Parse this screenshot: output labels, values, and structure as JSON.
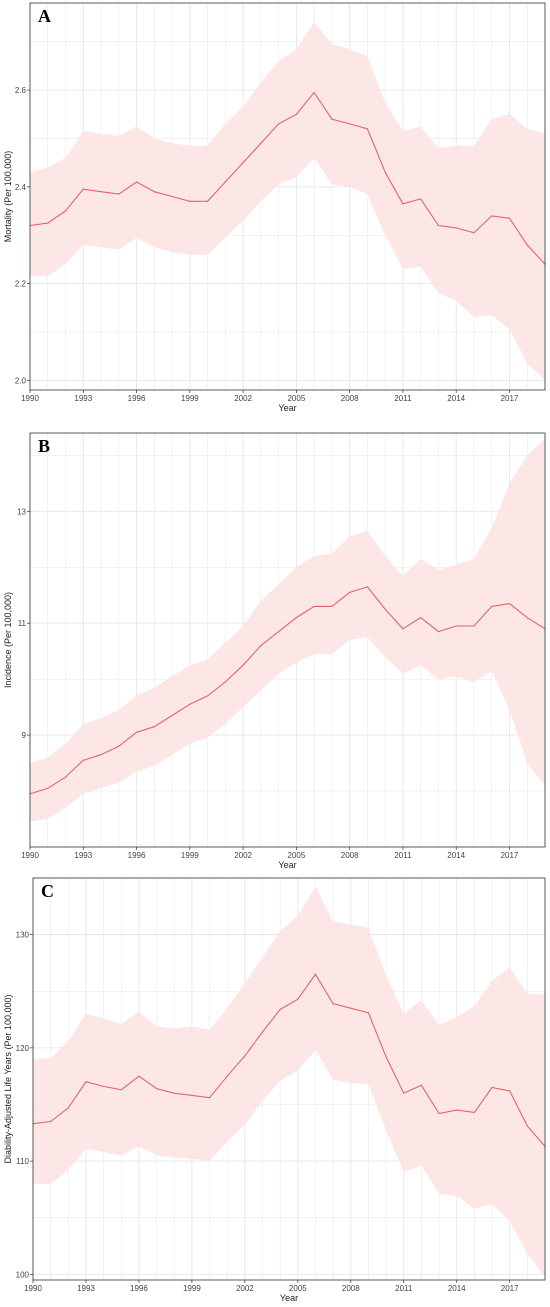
{
  "style": {
    "line_color": "#e06666",
    "band_color": "#fde2e2",
    "panel_bg": "#ffffff",
    "grid_color": "#e6e6e6",
    "frame_color": "#333333"
  },
  "chart_data": [
    {
      "type": "line",
      "panel": "A",
      "xlabel": "Year",
      "ylabel": "Mortality (Per 100,000)",
      "x": [
        1990,
        1991,
        1992,
        1993,
        1994,
        1995,
        1996,
        1997,
        1998,
        1999,
        2000,
        2001,
        2002,
        2003,
        2004,
        2005,
        2006,
        2007,
        2008,
        2009,
        2010,
        2011,
        2012,
        2013,
        2014,
        2015,
        2016,
        2017,
        2018,
        2019
      ],
      "series": [
        {
          "values": [
            2.32,
            2.325,
            2.35,
            2.395,
            2.39,
            2.385,
            2.41,
            2.39,
            2.38,
            2.37,
            2.37,
            2.41,
            2.45,
            2.49,
            2.53,
            2.55,
            2.595,
            2.54,
            2.53,
            2.52,
            2.43,
            2.365,
            2.375,
            2.32,
            2.315,
            2.305,
            2.34,
            2.335,
            2.28,
            2.24
          ],
          "lower": [
            2.215,
            2.215,
            2.24,
            2.28,
            2.275,
            2.27,
            2.295,
            2.275,
            2.265,
            2.26,
            2.26,
            2.295,
            2.33,
            2.37,
            2.405,
            2.42,
            2.46,
            2.405,
            2.4,
            2.385,
            2.3,
            2.23,
            2.235,
            2.18,
            2.165,
            2.13,
            2.135,
            2.105,
            2.035,
            2.0
          ],
          "upper": [
            2.43,
            2.44,
            2.46,
            2.515,
            2.51,
            2.505,
            2.525,
            2.5,
            2.49,
            2.485,
            2.485,
            2.53,
            2.565,
            2.615,
            2.66,
            2.685,
            2.74,
            2.695,
            2.685,
            2.67,
            2.575,
            2.515,
            2.525,
            2.48,
            2.485,
            2.485,
            2.54,
            2.55,
            2.52,
            2.51
          ]
        }
      ],
      "xlim": [
        1990,
        2019
      ],
      "ylim": [
        1.98,
        2.78
      ],
      "x_ticks": [
        1990,
        1993,
        1996,
        1999,
        2002,
        2005,
        2008,
        2011,
        2014,
        2017
      ],
      "y_ticks": [
        2.0,
        2.2,
        2.4,
        2.6
      ],
      "y_tick_labels": [
        "2.0",
        "2.2",
        "2.4",
        "2.6"
      ],
      "grid": true
    },
    {
      "type": "line",
      "panel": "B",
      "xlabel": "Year",
      "ylabel": "Incidence (Per 100,000)",
      "x": [
        1990,
        1991,
        1992,
        1993,
        1994,
        1995,
        1996,
        1997,
        1998,
        1999,
        2000,
        2001,
        2002,
        2003,
        2004,
        2005,
        2006,
        2007,
        2008,
        2009,
        2010,
        2011,
        2012,
        2013,
        2014,
        2015,
        2016,
        2017,
        2018,
        2019
      ],
      "series": [
        {
          "values": [
            7.95,
            8.05,
            8.25,
            8.55,
            8.65,
            8.8,
            9.05,
            9.15,
            9.35,
            9.55,
            9.7,
            9.95,
            10.25,
            10.6,
            10.85,
            11.1,
            11.3,
            11.3,
            11.55,
            11.65,
            11.25,
            10.9,
            11.1,
            10.85,
            10.95,
            10.95,
            11.3,
            11.35,
            11.1,
            10.9
          ],
          "lower": [
            7.45,
            7.5,
            7.7,
            7.95,
            8.05,
            8.15,
            8.35,
            8.45,
            8.65,
            8.85,
            8.95,
            9.2,
            9.5,
            9.8,
            10.1,
            10.3,
            10.45,
            10.45,
            10.7,
            10.75,
            10.4,
            10.1,
            10.25,
            10.0,
            10.05,
            9.95,
            10.15,
            9.45,
            8.5,
            8.1
          ],
          "upper": [
            8.5,
            8.6,
            8.85,
            9.2,
            9.3,
            9.45,
            9.7,
            9.85,
            10.05,
            10.25,
            10.35,
            10.65,
            10.95,
            11.4,
            11.7,
            12.0,
            12.2,
            12.25,
            12.55,
            12.65,
            12.2,
            11.85,
            12.15,
            11.95,
            12.05,
            12.15,
            12.7,
            13.5,
            14.0,
            14.3
          ]
        }
      ],
      "xlim": [
        1990,
        2019
      ],
      "ylim": [
        7.0,
        14.4
      ],
      "x_ticks": [
        1990,
        1993,
        1996,
        1999,
        2002,
        2005,
        2008,
        2011,
        2014,
        2017
      ],
      "y_ticks": [
        9,
        11,
        13
      ],
      "y_tick_labels": [
        "9",
        "11",
        "13"
      ],
      "grid": true
    },
    {
      "type": "line",
      "panel": "C",
      "xlabel": "Year",
      "ylabel": "Diability-Adjusted Life Years (Per 100,000)",
      "x": [
        1990,
        1991,
        1992,
        1993,
        1994,
        1995,
        1996,
        1997,
        1998,
        1999,
        2000,
        2001,
        2002,
        2003,
        2004,
        2005,
        2006,
        2007,
        2008,
        2009,
        2010,
        2011,
        2012,
        2013,
        2014,
        2015,
        2016,
        2017,
        2018,
        2019
      ],
      "series": [
        {
          "values": [
            113.3,
            113.5,
            114.7,
            117.0,
            116.6,
            116.3,
            117.5,
            116.4,
            116.0,
            115.8,
            115.6,
            117.5,
            119.3,
            121.4,
            123.4,
            124.3,
            126.5,
            123.9,
            123.5,
            123.1,
            119.2,
            116.0,
            116.7,
            114.2,
            114.5,
            114.3,
            116.5,
            116.2,
            113.1,
            111.3
          ],
          "lower": [
            108.0,
            108.0,
            109.2,
            111.1,
            110.8,
            110.5,
            111.3,
            110.5,
            110.3,
            110.2,
            110.0,
            111.7,
            113.2,
            115.3,
            117.1,
            118.0,
            119.8,
            117.2,
            116.9,
            116.8,
            112.7,
            109.0,
            109.6,
            107.1,
            106.9,
            105.8,
            106.2,
            104.7,
            101.8,
            99.8
          ],
          "upper": [
            119.0,
            119.1,
            120.6,
            123.0,
            122.6,
            122.1,
            123.2,
            121.9,
            121.7,
            121.9,
            121.6,
            123.5,
            125.7,
            128.0,
            130.3,
            131.7,
            134.2,
            131.2,
            130.9,
            130.6,
            126.4,
            123.0,
            124.2,
            122.0,
            122.7,
            123.7,
            125.9,
            127.1,
            124.8,
            124.7
          ]
        }
      ],
      "xlim": [
        1990,
        2019
      ],
      "ylim": [
        99.5,
        135.0
      ],
      "x_ticks": [
        1990,
        1993,
        1996,
        1999,
        2002,
        2005,
        2008,
        2011,
        2014,
        2017
      ],
      "y_ticks": [
        100,
        110,
        120,
        130
      ],
      "y_tick_labels": [
        "100",
        "110",
        "120",
        "130"
      ],
      "grid": true
    }
  ]
}
